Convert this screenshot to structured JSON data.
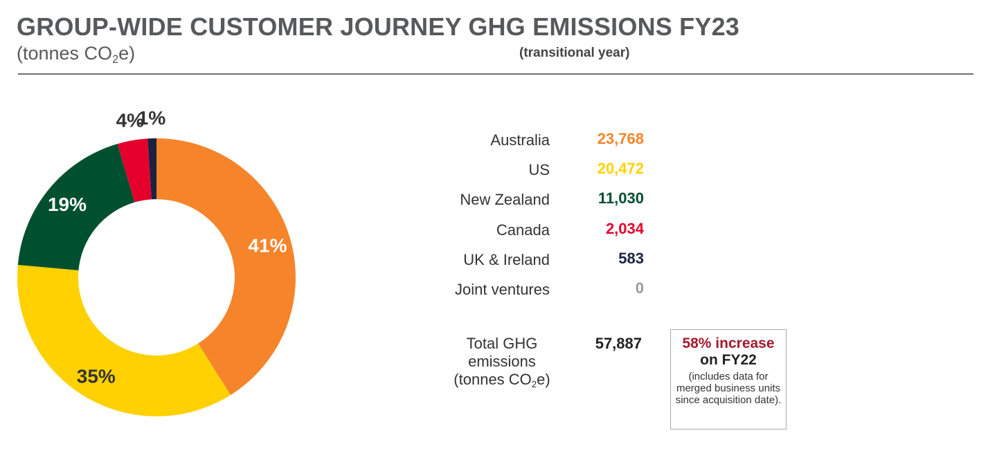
{
  "header": {
    "title": "GROUP-WIDE CUSTOMER JOURNEY GHG EMISSIONS FY23",
    "subtitle_prefix": "(tonnes CO",
    "subtitle_sub": "2",
    "subtitle_suffix": "e)",
    "note": "(transitional year)"
  },
  "chart_data": {
    "type": "pie",
    "style": "donut",
    "unit": "tonnes CO2e",
    "slices": [
      {
        "name": "Australia",
        "value": 23768,
        "label": "41%",
        "color": "#f5842b",
        "label_color": "#ffffff"
      },
      {
        "name": "US",
        "value": 20472,
        "label": "35%",
        "color": "#ffd100",
        "label_color": "#333333"
      },
      {
        "name": "New Zealand",
        "value": 11030,
        "label": "19%",
        "color": "#005030",
        "label_color": "#ffffff"
      },
      {
        "name": "Canada",
        "value": 2034,
        "label": "4%",
        "color": "#e4002b",
        "label_color": "#333333"
      },
      {
        "name": "UK & Ireland",
        "value": 583,
        "label": "1%",
        "color": "#1b2140",
        "label_color": "#333333"
      },
      {
        "name": "Joint ventures",
        "value": 0,
        "label": "",
        "color": "#999999",
        "label_color": "#333333"
      }
    ]
  },
  "legend": {
    "rows": [
      {
        "name": "Australia",
        "value": "23,768",
        "color": "#f5842b"
      },
      {
        "name": "US",
        "value": "20,472",
        "color": "#ffd100"
      },
      {
        "name": "New Zealand",
        "value": "11,030",
        "color": "#005030"
      },
      {
        "name": "Canada",
        "value": "2,034",
        "color": "#e4002b"
      },
      {
        "name": "UK & Ireland",
        "value": "583",
        "color": "#1b2140"
      },
      {
        "name": "Joint ventures",
        "value": "0",
        "color": "#999999"
      }
    ]
  },
  "total": {
    "label_line1": "Total GHG",
    "label_line2": "emissions",
    "label_line3_prefix": "(tonnes CO",
    "label_line3_sub": "2",
    "label_line3_suffix": "e)",
    "value": "57,887"
  },
  "callout": {
    "headline": "58% increase",
    "subline": "on FY22",
    "note": "(includes data for merged business units since acquisition date)."
  }
}
